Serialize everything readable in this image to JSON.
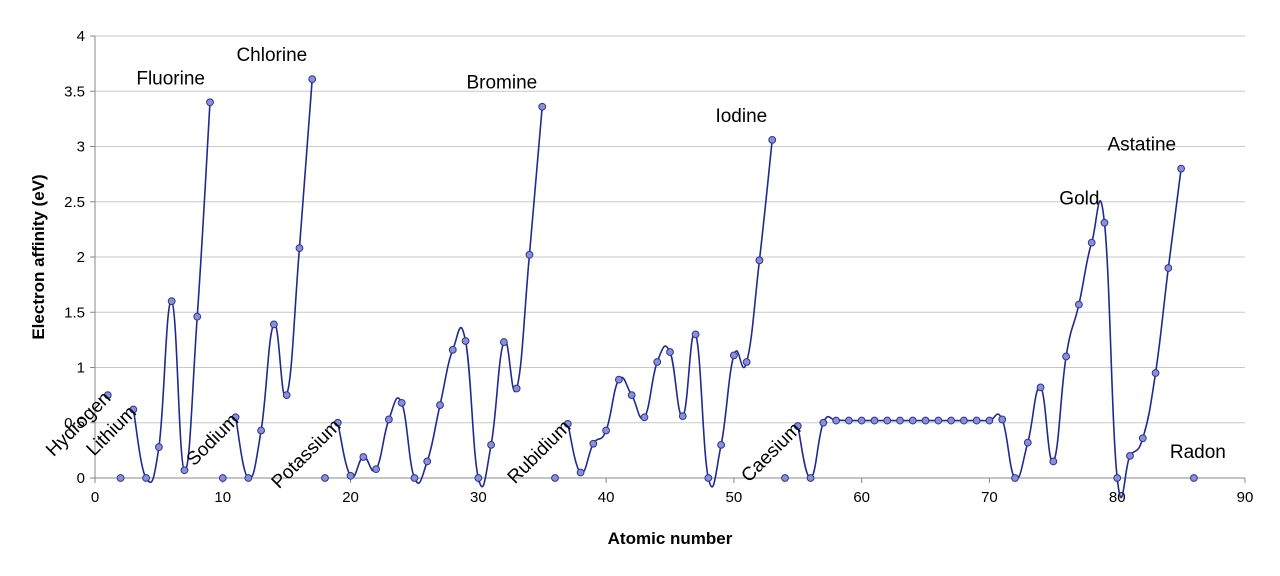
{
  "chart_data": {
    "type": "line",
    "title": "",
    "xlabel": "Atomic number",
    "ylabel": "Electron affinity (eV)",
    "xlim": [
      0,
      90
    ],
    "ylim": [
      0,
      4
    ],
    "xticks": [
      0,
      10,
      20,
      30,
      40,
      50,
      60,
      70,
      80,
      90
    ],
    "yticks": [
      0,
      0.5,
      1,
      1.5,
      2,
      2.5,
      3,
      3.5,
      4
    ],
    "xtick_labels": [
      "0",
      "10",
      "20",
      "30",
      "40",
      "50",
      "60",
      "70",
      "80",
      "90"
    ],
    "ytick_labels": [
      "0",
      "0.5",
      "1",
      "1.5",
      "2",
      "2.5",
      "3",
      "3.5",
      "4"
    ],
    "grid": "horizontal",
    "legend": "none",
    "colors": {
      "line": "#1f2a8f",
      "marker_fill": "#8a8fd6",
      "marker_stroke": "#2b3590",
      "grid": "#c8c8c8",
      "axis": "#888888"
    },
    "series": [
      {
        "segments": [
          [
            [
              1,
              0.75
            ]
          ],
          [
            [
              3,
              0.62
            ],
            [
              4,
              0.0
            ],
            [
              5,
              0.28
            ],
            [
              6,
              1.6
            ],
            [
              7,
              0.07
            ],
            [
              8,
              1.46
            ],
            [
              9,
              3.4
            ]
          ],
          [
            [
              11,
              0.55
            ],
            [
              12,
              0.0
            ],
            [
              13,
              0.43
            ],
            [
              14,
              1.39
            ],
            [
              15,
              0.75
            ],
            [
              16,
              2.08
            ],
            [
              17,
              3.61
            ]
          ],
          [
            [
              19,
              0.5
            ],
            [
              20,
              0.02
            ],
            [
              21,
              0.19
            ],
            [
              22,
              0.08
            ],
            [
              23,
              0.53
            ],
            [
              24,
              0.68
            ],
            [
              25,
              0.0
            ],
            [
              26,
              0.15
            ],
            [
              27,
              0.66
            ],
            [
              28,
              1.16
            ],
            [
              29,
              1.24
            ],
            [
              30,
              0.0
            ],
            [
              31,
              0.3
            ],
            [
              32,
              1.23
            ],
            [
              33,
              0.81
            ],
            [
              34,
              2.02
            ],
            [
              35,
              3.36
            ]
          ],
          [
            [
              37,
              0.49
            ],
            [
              38,
              0.05
            ],
            [
              39,
              0.31
            ],
            [
              40,
              0.43
            ],
            [
              41,
              0.89
            ],
            [
              42,
              0.75
            ],
            [
              43,
              0.55
            ],
            [
              44,
              1.05
            ],
            [
              45,
              1.14
            ],
            [
              46,
              0.56
            ],
            [
              47,
              1.3
            ],
            [
              48,
              0.0
            ],
            [
              49,
              0.3
            ],
            [
              50,
              1.11
            ],
            [
              51,
              1.05
            ],
            [
              52,
              1.97
            ],
            [
              53,
              3.06
            ]
          ],
          [
            [
              55,
              0.47
            ],
            [
              56,
              0.0
            ],
            [
              57,
              0.5
            ],
            [
              58,
              0.52
            ],
            [
              59,
              0.52
            ],
            [
              60,
              0.52
            ],
            [
              61,
              0.52
            ],
            [
              62,
              0.52
            ],
            [
              63,
              0.52
            ],
            [
              64,
              0.52
            ],
            [
              65,
              0.52
            ],
            [
              66,
              0.52
            ],
            [
              67,
              0.52
            ],
            [
              68,
              0.52
            ],
            [
              69,
              0.52
            ],
            [
              70,
              0.52
            ],
            [
              71,
              0.53
            ],
            [
              72,
              0.0
            ],
            [
              73,
              0.32
            ],
            [
              74,
              0.82
            ],
            [
              75,
              0.15
            ],
            [
              76,
              1.1
            ],
            [
              77,
              1.57
            ],
            [
              78,
              2.13
            ],
            [
              79,
              2.31
            ],
            [
              80,
              0.0
            ],
            [
              81,
              0.2
            ],
            [
              82,
              0.36
            ],
            [
              83,
              0.95
            ],
            [
              84,
              1.9
            ],
            [
              85,
              2.8
            ]
          ]
        ],
        "points": [
          [
            1,
            0.75
          ],
          [
            2,
            0.0
          ],
          [
            3,
            0.62
          ],
          [
            4,
            0.0
          ],
          [
            5,
            0.28
          ],
          [
            6,
            1.6
          ],
          [
            7,
            0.07
          ],
          [
            8,
            1.46
          ],
          [
            9,
            3.4
          ],
          [
            10,
            0.0
          ],
          [
            11,
            0.55
          ],
          [
            12,
            0.0
          ],
          [
            13,
            0.43
          ],
          [
            14,
            1.39
          ],
          [
            15,
            0.75
          ],
          [
            16,
            2.08
          ],
          [
            17,
            3.61
          ],
          [
            18,
            0.0
          ],
          [
            19,
            0.5
          ],
          [
            20,
            0.02
          ],
          [
            21,
            0.19
          ],
          [
            22,
            0.08
          ],
          [
            23,
            0.53
          ],
          [
            24,
            0.68
          ],
          [
            25,
            0.0
          ],
          [
            26,
            0.15
          ],
          [
            27,
            0.66
          ],
          [
            28,
            1.16
          ],
          [
            29,
            1.24
          ],
          [
            30,
            0.0
          ],
          [
            31,
            0.3
          ],
          [
            32,
            1.23
          ],
          [
            33,
            0.81
          ],
          [
            34,
            2.02
          ],
          [
            35,
            3.36
          ],
          [
            36,
            0.0
          ],
          [
            37,
            0.49
          ],
          [
            38,
            0.05
          ],
          [
            39,
            0.31
          ],
          [
            40,
            0.43
          ],
          [
            41,
            0.89
          ],
          [
            42,
            0.75
          ],
          [
            43,
            0.55
          ],
          [
            44,
            1.05
          ],
          [
            45,
            1.14
          ],
          [
            46,
            0.56
          ],
          [
            47,
            1.3
          ],
          [
            48,
            0.0
          ],
          [
            49,
            0.3
          ],
          [
            50,
            1.11
          ],
          [
            51,
            1.05
          ],
          [
            52,
            1.97
          ],
          [
            53,
            3.06
          ],
          [
            54,
            0.0
          ],
          [
            55,
            0.47
          ],
          [
            56,
            0.0
          ],
          [
            57,
            0.5
          ],
          [
            58,
            0.52
          ],
          [
            59,
            0.52
          ],
          [
            60,
            0.52
          ],
          [
            61,
            0.52
          ],
          [
            62,
            0.52
          ],
          [
            63,
            0.52
          ],
          [
            64,
            0.52
          ],
          [
            65,
            0.52
          ],
          [
            66,
            0.52
          ],
          [
            67,
            0.52
          ],
          [
            68,
            0.52
          ],
          [
            69,
            0.52
          ],
          [
            70,
            0.52
          ],
          [
            71,
            0.53
          ],
          [
            72,
            0.0
          ],
          [
            73,
            0.32
          ],
          [
            74,
            0.82
          ],
          [
            75,
            0.15
          ],
          [
            76,
            1.1
          ],
          [
            77,
            1.57
          ],
          [
            78,
            2.13
          ],
          [
            79,
            2.31
          ],
          [
            80,
            0.0
          ],
          [
            81,
            0.2
          ],
          [
            82,
            0.36
          ],
          [
            83,
            0.95
          ],
          [
            84,
            1.9
          ],
          [
            85,
            2.8
          ],
          [
            86,
            0.0
          ]
        ]
      }
    ],
    "annotations": [
      {
        "text": "Hydrogen",
        "x": 1,
        "y": 0.75,
        "angle": -45
      },
      {
        "text": "Lithium",
        "x": 3,
        "y": 0.62,
        "angle": -45
      },
      {
        "text": "Fluorine",
        "x": 9,
        "y": 3.4,
        "angle": 0
      },
      {
        "text": "Sodium",
        "x": 11,
        "y": 0.55,
        "angle": -45
      },
      {
        "text": "Chlorine",
        "x": 17,
        "y": 3.61,
        "angle": 0
      },
      {
        "text": "Potassium",
        "x": 19,
        "y": 0.5,
        "angle": -45
      },
      {
        "text": "Bromine",
        "x": 35,
        "y": 3.36,
        "angle": 0
      },
      {
        "text": "Rubidium",
        "x": 37,
        "y": 0.49,
        "angle": -45
      },
      {
        "text": "Iodine",
        "x": 53,
        "y": 3.06,
        "angle": 0
      },
      {
        "text": "Caesium",
        "x": 55,
        "y": 0.47,
        "angle": -45
      },
      {
        "text": "Gold",
        "x": 79,
        "y": 2.31,
        "angle": 0
      },
      {
        "text": "Astatine",
        "x": 85,
        "y": 2.8,
        "angle": 0
      },
      {
        "text": "Radon",
        "x": 86,
        "y": 0.0,
        "angle": 0
      }
    ]
  }
}
